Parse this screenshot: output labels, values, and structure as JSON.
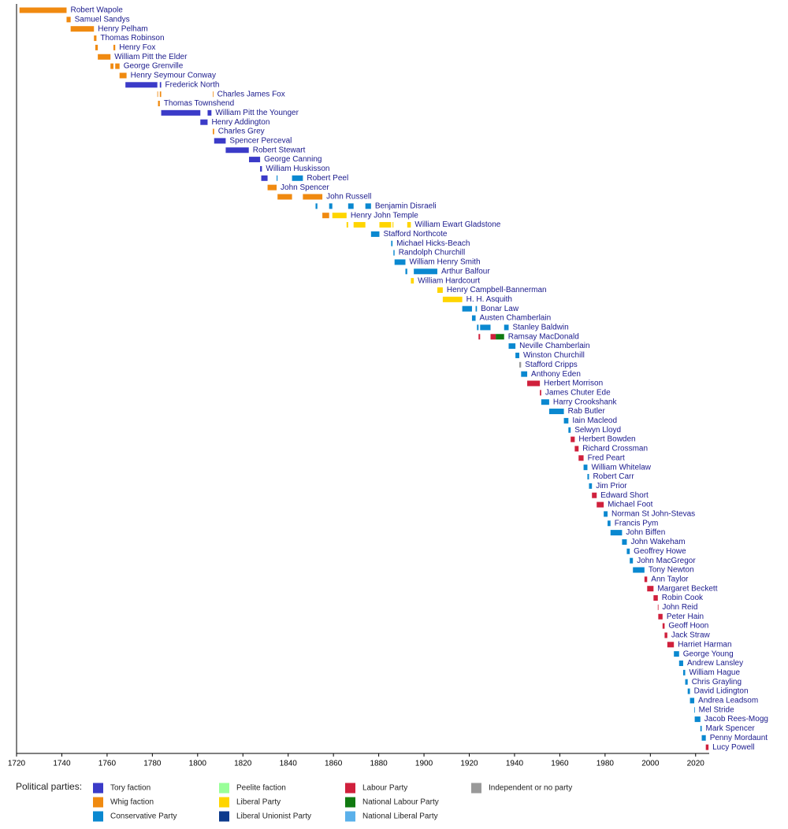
{
  "chart_data": {
    "type": "timeline",
    "xlim": [
      1720,
      2026
    ],
    "xticks": [
      1720,
      1740,
      1760,
      1780,
      1800,
      1820,
      1840,
      1860,
      1880,
      1900,
      1920,
      1940,
      1960,
      1980,
      2000,
      2020
    ],
    "legend_title": "Political parties:",
    "parties": [
      {
        "name": "Tory faction",
        "color": "#3b3bc8"
      },
      {
        "name": "Whig faction",
        "color": "#f08a10"
      },
      {
        "name": "Conservative Party",
        "color": "#0a88d0"
      },
      {
        "name": "Peelite faction",
        "color": "#99ff99"
      },
      {
        "name": "Liberal Party",
        "color": "#ffd500"
      },
      {
        "name": "Liberal Unionist Party",
        "color": "#0c3a8c"
      },
      {
        "name": "Labour Party",
        "color": "#d0203c"
      },
      {
        "name": "National Labour Party",
        "color": "#117a11"
      },
      {
        "name": "National Liberal Party",
        "color": "#5ab0ea"
      },
      {
        "name": "Independent or no party",
        "color": "#999999"
      }
    ],
    "rows": [
      {
        "name": "Robert Wapole",
        "segments": [
          [
            1721.3,
            1742.1,
            1
          ]
        ]
      },
      {
        "name": "Samuel Sandys",
        "segments": [
          [
            1742.1,
            1743.9,
            1
          ]
        ]
      },
      {
        "name": "Henry Pelham",
        "segments": [
          [
            1743.9,
            1754.2,
            1
          ]
        ]
      },
      {
        "name": "Thomas Robinson",
        "segments": [
          [
            1754.2,
            1755.3,
            1
          ]
        ]
      },
      {
        "name": "Henry Fox",
        "segments": [
          [
            1754.8,
            1755.9,
            1
          ],
          [
            1762.8,
            1763.6,
            1
          ]
        ]
      },
      {
        "name": "William Pitt the Elder",
        "segments": [
          [
            1755.9,
            1761.5,
            1
          ]
        ]
      },
      {
        "name": "George Grenville",
        "segments": [
          [
            1761.5,
            1762.8,
            1
          ],
          [
            1763.6,
            1765.5,
            1
          ]
        ]
      },
      {
        "name": "Henry Seymour Conway",
        "segments": [
          [
            1765.5,
            1768.6,
            1
          ]
        ]
      },
      {
        "name": "Frederick North",
        "segments": [
          [
            1768.1,
            1782.2,
            0
          ],
          [
            1783.3,
            1783.9,
            0
          ]
        ]
      },
      {
        "name": "Charles James Fox",
        "segments": [
          [
            1782.2,
            1782.5,
            1
          ],
          [
            1783.3,
            1783.9,
            1
          ],
          [
            1806.7,
            1806.9,
            1
          ]
        ]
      },
      {
        "name": "Thomas Townshend",
        "segments": [
          [
            1782.5,
            1783.3,
            1
          ]
        ]
      },
      {
        "name": "William Pitt the Younger",
        "segments": [
          [
            1783.9,
            1801.2,
            0
          ],
          [
            1804.4,
            1806.1,
            0
          ]
        ]
      },
      {
        "name": "Henry Addington",
        "segments": [
          [
            1801.2,
            1804.4,
            0
          ]
        ]
      },
      {
        "name": "Charles Grey",
        "segments": [
          [
            1806.7,
            1807.3,
            1
          ]
        ]
      },
      {
        "name": "Spencer Perceval",
        "segments": [
          [
            1807.3,
            1812.4,
            0
          ]
        ]
      },
      {
        "name": "Robert Stewart",
        "segments": [
          [
            1812.4,
            1822.6,
            0
          ]
        ]
      },
      {
        "name": "George Canning",
        "segments": [
          [
            1822.7,
            1827.6,
            0
          ]
        ]
      },
      {
        "name": "William Huskisson",
        "segments": [
          [
            1827.6,
            1828.4,
            0
          ]
        ]
      },
      {
        "name": "Robert Peel",
        "segments": [
          [
            1828.1,
            1830.9,
            0
          ],
          [
            1834.9,
            1835.3,
            2
          ],
          [
            1841.7,
            1846.5,
            2
          ]
        ]
      },
      {
        "name": "John Spencer",
        "segments": [
          [
            1830.9,
            1834.9,
            1
          ]
        ]
      },
      {
        "name": "John Russell",
        "segments": [
          [
            1835.3,
            1841.7,
            1
          ],
          [
            1846.5,
            1855.1,
            1
          ]
        ]
      },
      {
        "name": "Benjamin Disraeli",
        "segments": [
          [
            1852.1,
            1852.9,
            2
          ],
          [
            1858.1,
            1859.5,
            2
          ],
          [
            1866.5,
            1868.9,
            2
          ],
          [
            1874.1,
            1876.6,
            2
          ]
        ]
      },
      {
        "name": "Henry John Temple",
        "segments": [
          [
            1855.1,
            1858.1,
            1
          ],
          [
            1859.5,
            1865.8,
            4
          ]
        ]
      },
      {
        "name": "William Ewart Gladstone",
        "segments": [
          [
            1865.8,
            1866.5,
            4
          ],
          [
            1868.9,
            1874.1,
            4
          ],
          [
            1880.3,
            1885.5,
            4
          ],
          [
            1886.1,
            1886.5,
            4
          ],
          [
            1892.6,
            1894.2,
            4
          ]
        ]
      },
      {
        "name": "Stafford Northcote",
        "segments": [
          [
            1876.6,
            1880.3,
            2
          ]
        ]
      },
      {
        "name": "Michael Hicks-Beach",
        "segments": [
          [
            1885.5,
            1886.1,
            2
          ]
        ]
      },
      {
        "name": "Randolph Churchill",
        "segments": [
          [
            1886.5,
            1887.0,
            2
          ]
        ]
      },
      {
        "name": "William Henry Smith",
        "segments": [
          [
            1887.0,
            1891.8,
            2
          ]
        ]
      },
      {
        "name": "Arthur Balfour",
        "segments": [
          [
            1891.8,
            1892.6,
            2
          ],
          [
            1895.5,
            1905.9,
            2
          ]
        ]
      },
      {
        "name": "William Hardcourt",
        "segments": [
          [
            1894.2,
            1895.5,
            4
          ]
        ]
      },
      {
        "name": "Henry Campbell-Bannerman",
        "segments": [
          [
            1905.9,
            1908.3,
            4
          ]
        ]
      },
      {
        "name": "H. H. Asquith",
        "segments": [
          [
            1908.3,
            1916.9,
            4
          ]
        ]
      },
      {
        "name": "Bonar Law",
        "segments": [
          [
            1916.9,
            1921.2,
            2
          ],
          [
            1922.8,
            1923.4,
            2
          ]
        ]
      },
      {
        "name": "Austen Chamberlain",
        "segments": [
          [
            1921.2,
            1922.8,
            2
          ]
        ]
      },
      {
        "name": "Stanley Baldwin",
        "segments": [
          [
            1923.4,
            1924.1,
            2
          ],
          [
            1924.8,
            1929.4,
            2
          ],
          [
            1935.4,
            1937.4,
            2
          ]
        ]
      },
      {
        "name": "Ramsay MacDonald",
        "segments": [
          [
            1924.1,
            1924.8,
            6
          ],
          [
            1929.4,
            1931.7,
            6
          ],
          [
            1931.7,
            1935.4,
            7
          ]
        ]
      },
      {
        "name": "Neville Chamberlain",
        "segments": [
          [
            1937.4,
            1940.4,
            2
          ]
        ]
      },
      {
        "name": "Winston Churchill",
        "segments": [
          [
            1940.4,
            1942.1,
            2
          ]
        ]
      },
      {
        "name": "Stafford Cripps",
        "segments": [
          [
            1942.1,
            1942.9,
            9
          ]
        ]
      },
      {
        "name": "Anthony Eden",
        "segments": [
          [
            1942.9,
            1945.6,
            2
          ]
        ]
      },
      {
        "name": "Herbert Morrison",
        "segments": [
          [
            1945.6,
            1951.2,
            6
          ]
        ]
      },
      {
        "name": "James Chuter Ede",
        "segments": [
          [
            1951.2,
            1951.8,
            6
          ]
        ]
      },
      {
        "name": "Harry Crookshank",
        "segments": [
          [
            1951.8,
            1955.3,
            2
          ]
        ]
      },
      {
        "name": "Rab Butler",
        "segments": [
          [
            1955.3,
            1961.8,
            2
          ]
        ]
      },
      {
        "name": "Iain Macleod",
        "segments": [
          [
            1961.8,
            1963.8,
            2
          ]
        ]
      },
      {
        "name": "Selwyn Lloyd",
        "segments": [
          [
            1963.8,
            1964.8,
            2
          ]
        ]
      },
      {
        "name": "Herbert Bowden",
        "segments": [
          [
            1964.8,
            1966.6,
            6
          ]
        ]
      },
      {
        "name": "Richard Crossman",
        "segments": [
          [
            1966.6,
            1968.3,
            6
          ]
        ]
      },
      {
        "name": "Fred Peart",
        "segments": [
          [
            1968.3,
            1970.5,
            6
          ]
        ]
      },
      {
        "name": "William Whitelaw",
        "segments": [
          [
            1970.5,
            1972.2,
            2
          ]
        ]
      },
      {
        "name": "Robert Carr",
        "segments": [
          [
            1972.2,
            1972.9,
            2
          ]
        ]
      },
      {
        "name": "Jim Prior",
        "segments": [
          [
            1972.9,
            1974.2,
            2
          ]
        ]
      },
      {
        "name": "Edward Short",
        "segments": [
          [
            1974.2,
            1976.3,
            6
          ]
        ]
      },
      {
        "name": "Michael Foot",
        "segments": [
          [
            1976.3,
            1979.4,
            6
          ]
        ]
      },
      {
        "name": "Norman St John-Stevas",
        "segments": [
          [
            1979.4,
            1981.1,
            2
          ]
        ]
      },
      {
        "name": "Francis Pym",
        "segments": [
          [
            1981.1,
            1982.4,
            2
          ]
        ]
      },
      {
        "name": "John Biffen",
        "segments": [
          [
            1982.4,
            1987.5,
            2
          ]
        ]
      },
      {
        "name": "John Wakeham",
        "segments": [
          [
            1987.5,
            1989.6,
            2
          ]
        ]
      },
      {
        "name": "Geoffrey Howe",
        "segments": [
          [
            1989.6,
            1990.9,
            2
          ]
        ]
      },
      {
        "name": "John MacGregor",
        "segments": [
          [
            1990.9,
            1992.3,
            2
          ]
        ]
      },
      {
        "name": "Tony Newton",
        "segments": [
          [
            1992.3,
            1997.4,
            2
          ]
        ]
      },
      {
        "name": "Ann Taylor",
        "segments": [
          [
            1997.4,
            1998.6,
            6
          ]
        ]
      },
      {
        "name": "Margaret Beckett",
        "segments": [
          [
            1998.6,
            2001.4,
            6
          ]
        ]
      },
      {
        "name": "Robin Cook",
        "segments": [
          [
            2001.4,
            2003.3,
            6
          ]
        ]
      },
      {
        "name": "John Reid",
        "segments": [
          [
            2003.3,
            2003.5,
            6
          ]
        ]
      },
      {
        "name": "Peter Hain",
        "segments": [
          [
            2003.5,
            2005.4,
            6
          ]
        ]
      },
      {
        "name": "Geoff Hoon",
        "segments": [
          [
            2005.4,
            2006.3,
            6
          ]
        ]
      },
      {
        "name": "Jack Straw",
        "segments": [
          [
            2006.3,
            2007.5,
            6
          ]
        ]
      },
      {
        "name": "Harriet Harman",
        "segments": [
          [
            2007.5,
            2010.4,
            6
          ]
        ]
      },
      {
        "name": "George Young",
        "segments": [
          [
            2010.4,
            2012.7,
            2
          ]
        ]
      },
      {
        "name": "Andrew Lansley",
        "segments": [
          [
            2012.7,
            2014.5,
            2
          ]
        ]
      },
      {
        "name": "William Hague",
        "segments": [
          [
            2014.5,
            2015.4,
            2
          ]
        ]
      },
      {
        "name": "Chris Grayling",
        "segments": [
          [
            2015.4,
            2016.5,
            2
          ]
        ]
      },
      {
        "name": "David Lidington",
        "segments": [
          [
            2016.5,
            2017.5,
            2
          ]
        ]
      },
      {
        "name": "Andrea Leadsom",
        "segments": [
          [
            2017.5,
            2019.4,
            2
          ]
        ]
      },
      {
        "name": "Mel Stride",
        "segments": [
          [
            2019.4,
            2019.6,
            2
          ]
        ]
      },
      {
        "name": "Jacob Rees-Mogg",
        "segments": [
          [
            2019.6,
            2022.1,
            2
          ]
        ]
      },
      {
        "name": "Mark Spencer",
        "segments": [
          [
            2022.1,
            2022.7,
            2
          ]
        ]
      },
      {
        "name": "Penny Mordaunt",
        "segments": [
          [
            2022.7,
            2024.5,
            2
          ]
        ]
      },
      {
        "name": "Lucy Powell",
        "segments": [
          [
            2024.5,
            2025.7,
            6
          ]
        ]
      }
    ]
  }
}
